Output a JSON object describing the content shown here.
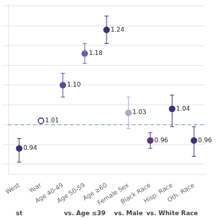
{
  "chart_data": {
    "type": "scatter",
    "categories": [
      "West",
      "Year",
      "Age 40-49",
      "Age 50-59",
      "Age ≥60",
      "Female Sex",
      "Black Race",
      "Hisp. Race",
      "Oth. Race"
    ],
    "values": [
      0.94,
      1.01,
      1.1,
      1.18,
      1.24,
      1.03,
      0.96,
      1.04,
      0.96
    ],
    "value_labels": [
      "0.94",
      "1.01",
      "1.10",
      "1.18",
      "1.24",
      "1.03",
      "0.96",
      "1.04",
      "0.96"
    ],
    "data_labels": true,
    "error_low": [
      0.035,
      0.0,
      0.03,
      0.025,
      0.035,
      0.04,
      0.02,
      0.045,
      0.04
    ],
    "error_high": [
      0.025,
      0.0,
      0.03,
      0.025,
      0.035,
      0.04,
      0.02,
      0.035,
      0.035
    ],
    "colors": [
      "#3a3278",
      "#3a3278",
      "#5a4e9a",
      "#6b5faa",
      "#3a3278",
      "#aaaacc",
      "#5a3a7a",
      "#3a3278",
      "#3a3278"
    ],
    "markers": [
      "filled",
      "open",
      "filled",
      "filled",
      "filled",
      "filled",
      "filled",
      "filled",
      "filled"
    ],
    "category_groups": [
      {
        "label": "st",
        "from": "West",
        "to": "West"
      },
      {
        "label": "vs. Age ≤39",
        "from": "Age 40-49",
        "to": "Age ≥60"
      },
      {
        "label": "vs. Male",
        "from": "Female Sex",
        "to": "Female Sex"
      },
      {
        "label": "vs. White Race",
        "from": "Black Race",
        "to": "Oth. Race"
      }
    ],
    "hlines": [
      {
        "y": 1.0,
        "color": "#6699cc",
        "line_style": "dashed"
      }
    ],
    "ylim": [
      0.875,
      1.305
    ],
    "yticks": [
      0.9,
      0.95,
      1.0,
      1.05,
      1.1,
      1.15,
      1.2,
      1.25,
      1.3
    ],
    "grid": "y",
    "tick_labels": "x"
  }
}
